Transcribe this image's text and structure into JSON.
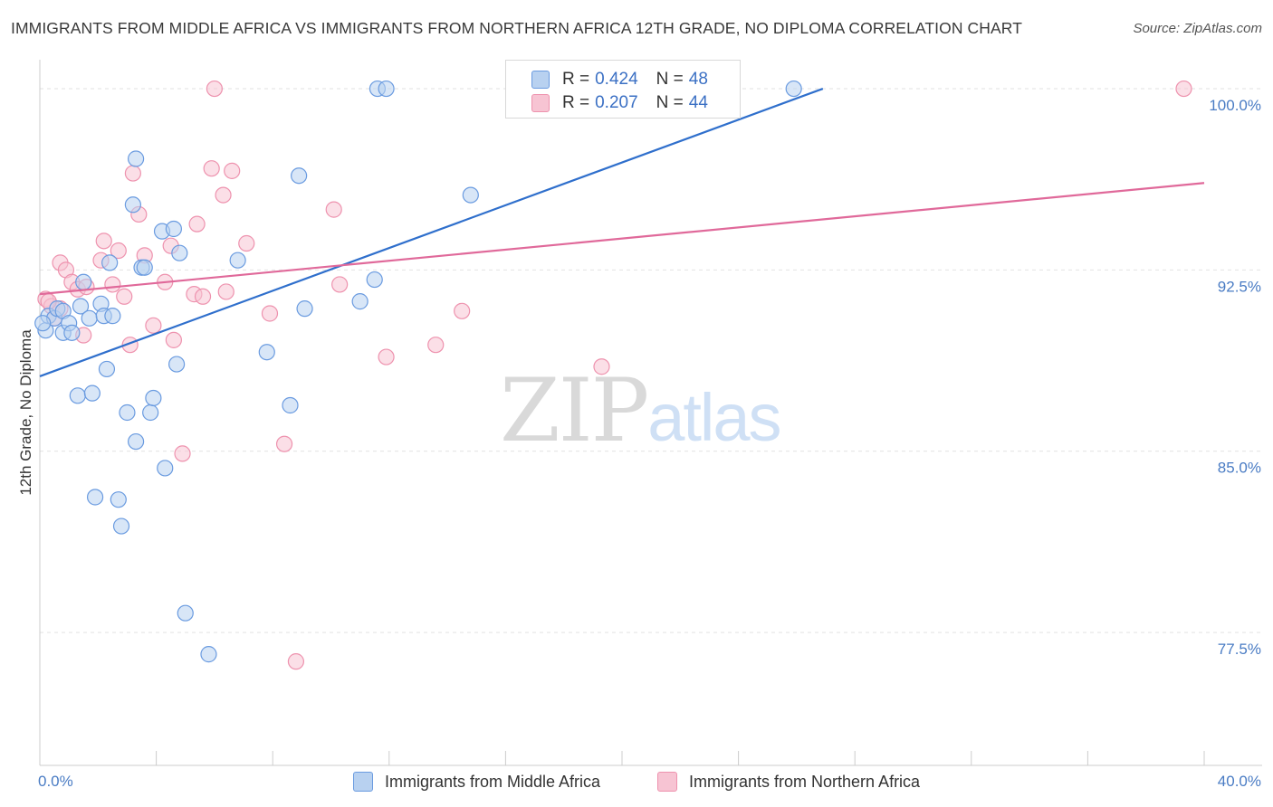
{
  "title": "IMMIGRANTS FROM MIDDLE AFRICA VS IMMIGRANTS FROM NORTHERN AFRICA 12TH GRADE, NO DIPLOMA CORRELATION CHART",
  "source": "Source: ZipAtlas.com",
  "watermark": {
    "zip": "ZIP",
    "atlas": "atlas"
  },
  "legend": {
    "rows": [
      {
        "r_label": "R = ",
        "r_value": "0.424",
        "n_label": "N = ",
        "n_value": "48"
      },
      {
        "r_label": "R = ",
        "r_value": "0.207",
        "n_label": "N = ",
        "n_value": "44"
      }
    ]
  },
  "colors": {
    "blue_fill": "#b8d1f0",
    "blue_stroke": "#6a9be0",
    "blue_line": "#2f6fcc",
    "pink_fill": "#f7c4d3",
    "pink_stroke": "#ee92ae",
    "pink_line": "#e0699a"
  },
  "chart_data": {
    "type": "scatter",
    "title": "IMMIGRANTS FROM MIDDLE AFRICA VS IMMIGRANTS FROM NORTHERN AFRICA 12TH GRADE, NO DIPLOMA CORRELATION CHART",
    "xlabel": "",
    "ylabel": "12th Grade, No Diploma",
    "xlim": [
      0,
      40
    ],
    "ylim": [
      72.0,
      101.2
    ],
    "x_tick_labels": [
      {
        "value": 0,
        "label": "0.0%"
      },
      {
        "value": 40,
        "label": "40.0%"
      }
    ],
    "x_minor_ticks": [
      0,
      4,
      8,
      12,
      16,
      20,
      24,
      28,
      32,
      36,
      40
    ],
    "y_ticks": [
      {
        "value": 100.0,
        "label": "100.0%"
      },
      {
        "value": 92.5,
        "label": "92.5%"
      },
      {
        "value": 85.0,
        "label": "85.0%"
      },
      {
        "value": 77.5,
        "label": "77.5%"
      }
    ],
    "series": [
      {
        "name": "Immigrants from Middle Africa",
        "color": "blue",
        "r": 0.424,
        "n": 48,
        "trend": {
          "x0": 0,
          "y0": 88.1,
          "x1": 26.9,
          "y1": 100.0
        },
        "points": [
          [
            0.2,
            90.0
          ],
          [
            0.3,
            90.6
          ],
          [
            0.5,
            90.5
          ],
          [
            0.6,
            90.9
          ],
          [
            0.8,
            89.9
          ],
          [
            0.8,
            90.8
          ],
          [
            1.0,
            90.3
          ],
          [
            1.1,
            89.9
          ],
          [
            1.3,
            87.3
          ],
          [
            1.4,
            91.0
          ],
          [
            1.5,
            92.0
          ],
          [
            1.7,
            90.5
          ],
          [
            1.8,
            87.4
          ],
          [
            2.1,
            91.1
          ],
          [
            2.2,
            90.6
          ],
          [
            2.3,
            88.4
          ],
          [
            2.4,
            92.8
          ],
          [
            2.5,
            90.6
          ],
          [
            1.9,
            83.1
          ],
          [
            2.7,
            83.0
          ],
          [
            2.8,
            81.9
          ],
          [
            3.0,
            86.6
          ],
          [
            3.2,
            95.2
          ],
          [
            3.3,
            85.4
          ],
          [
            3.3,
            97.1
          ],
          [
            3.5,
            92.6
          ],
          [
            3.6,
            92.6
          ],
          [
            3.8,
            86.6
          ],
          [
            3.9,
            87.2
          ],
          [
            4.2,
            94.1
          ],
          [
            4.3,
            84.3
          ],
          [
            4.6,
            94.2
          ],
          [
            4.7,
            88.6
          ],
          [
            4.8,
            93.2
          ],
          [
            5.0,
            78.3
          ],
          [
            5.8,
            76.6
          ],
          [
            6.8,
            92.9
          ],
          [
            7.8,
            89.1
          ],
          [
            8.6,
            86.9
          ],
          [
            8.9,
            96.4
          ],
          [
            9.1,
            90.9
          ],
          [
            11.0,
            91.2
          ],
          [
            11.5,
            92.1
          ],
          [
            11.6,
            100.0
          ],
          [
            11.9,
            100.0
          ],
          [
            14.8,
            95.6
          ],
          [
            25.9,
            100.0
          ],
          [
            0.1,
            90.3
          ]
        ]
      },
      {
        "name": "Immigrants from Northern Africa",
        "color": "pink",
        "r": 0.207,
        "n": 44,
        "trend": {
          "x0": 0,
          "y0": 91.5,
          "x1": 40,
          "y1": 96.1
        },
        "points": [
          [
            0.2,
            91.3
          ],
          [
            0.4,
            91.0
          ],
          [
            0.5,
            90.5
          ],
          [
            0.7,
            90.9
          ],
          [
            0.7,
            92.8
          ],
          [
            0.9,
            92.5
          ],
          [
            1.1,
            92.0
          ],
          [
            1.3,
            91.7
          ],
          [
            1.6,
            91.8
          ],
          [
            1.5,
            89.8
          ],
          [
            2.1,
            92.9
          ],
          [
            2.2,
            93.7
          ],
          [
            2.5,
            91.9
          ],
          [
            2.7,
            93.3
          ],
          [
            2.9,
            91.4
          ],
          [
            3.1,
            89.4
          ],
          [
            3.2,
            96.5
          ],
          [
            3.4,
            94.8
          ],
          [
            3.6,
            93.1
          ],
          [
            3.9,
            90.2
          ],
          [
            4.3,
            92.0
          ],
          [
            4.5,
            93.5
          ],
          [
            4.6,
            89.6
          ],
          [
            4.9,
            84.9
          ],
          [
            5.3,
            91.5
          ],
          [
            5.4,
            94.4
          ],
          [
            5.6,
            91.4
          ],
          [
            5.9,
            96.7
          ],
          [
            6.0,
            100.0
          ],
          [
            6.3,
            95.6
          ],
          [
            6.4,
            91.6
          ],
          [
            6.6,
            96.6
          ],
          [
            7.1,
            93.6
          ],
          [
            7.9,
            90.7
          ],
          [
            8.4,
            85.3
          ],
          [
            8.8,
            76.3
          ],
          [
            10.1,
            95.0
          ],
          [
            10.3,
            91.9
          ],
          [
            11.9,
            88.9
          ],
          [
            13.6,
            89.4
          ],
          [
            14.5,
            90.8
          ],
          [
            19.3,
            88.5
          ],
          [
            39.3,
            100.0
          ],
          [
            0.3,
            91.2
          ]
        ]
      }
    ]
  }
}
